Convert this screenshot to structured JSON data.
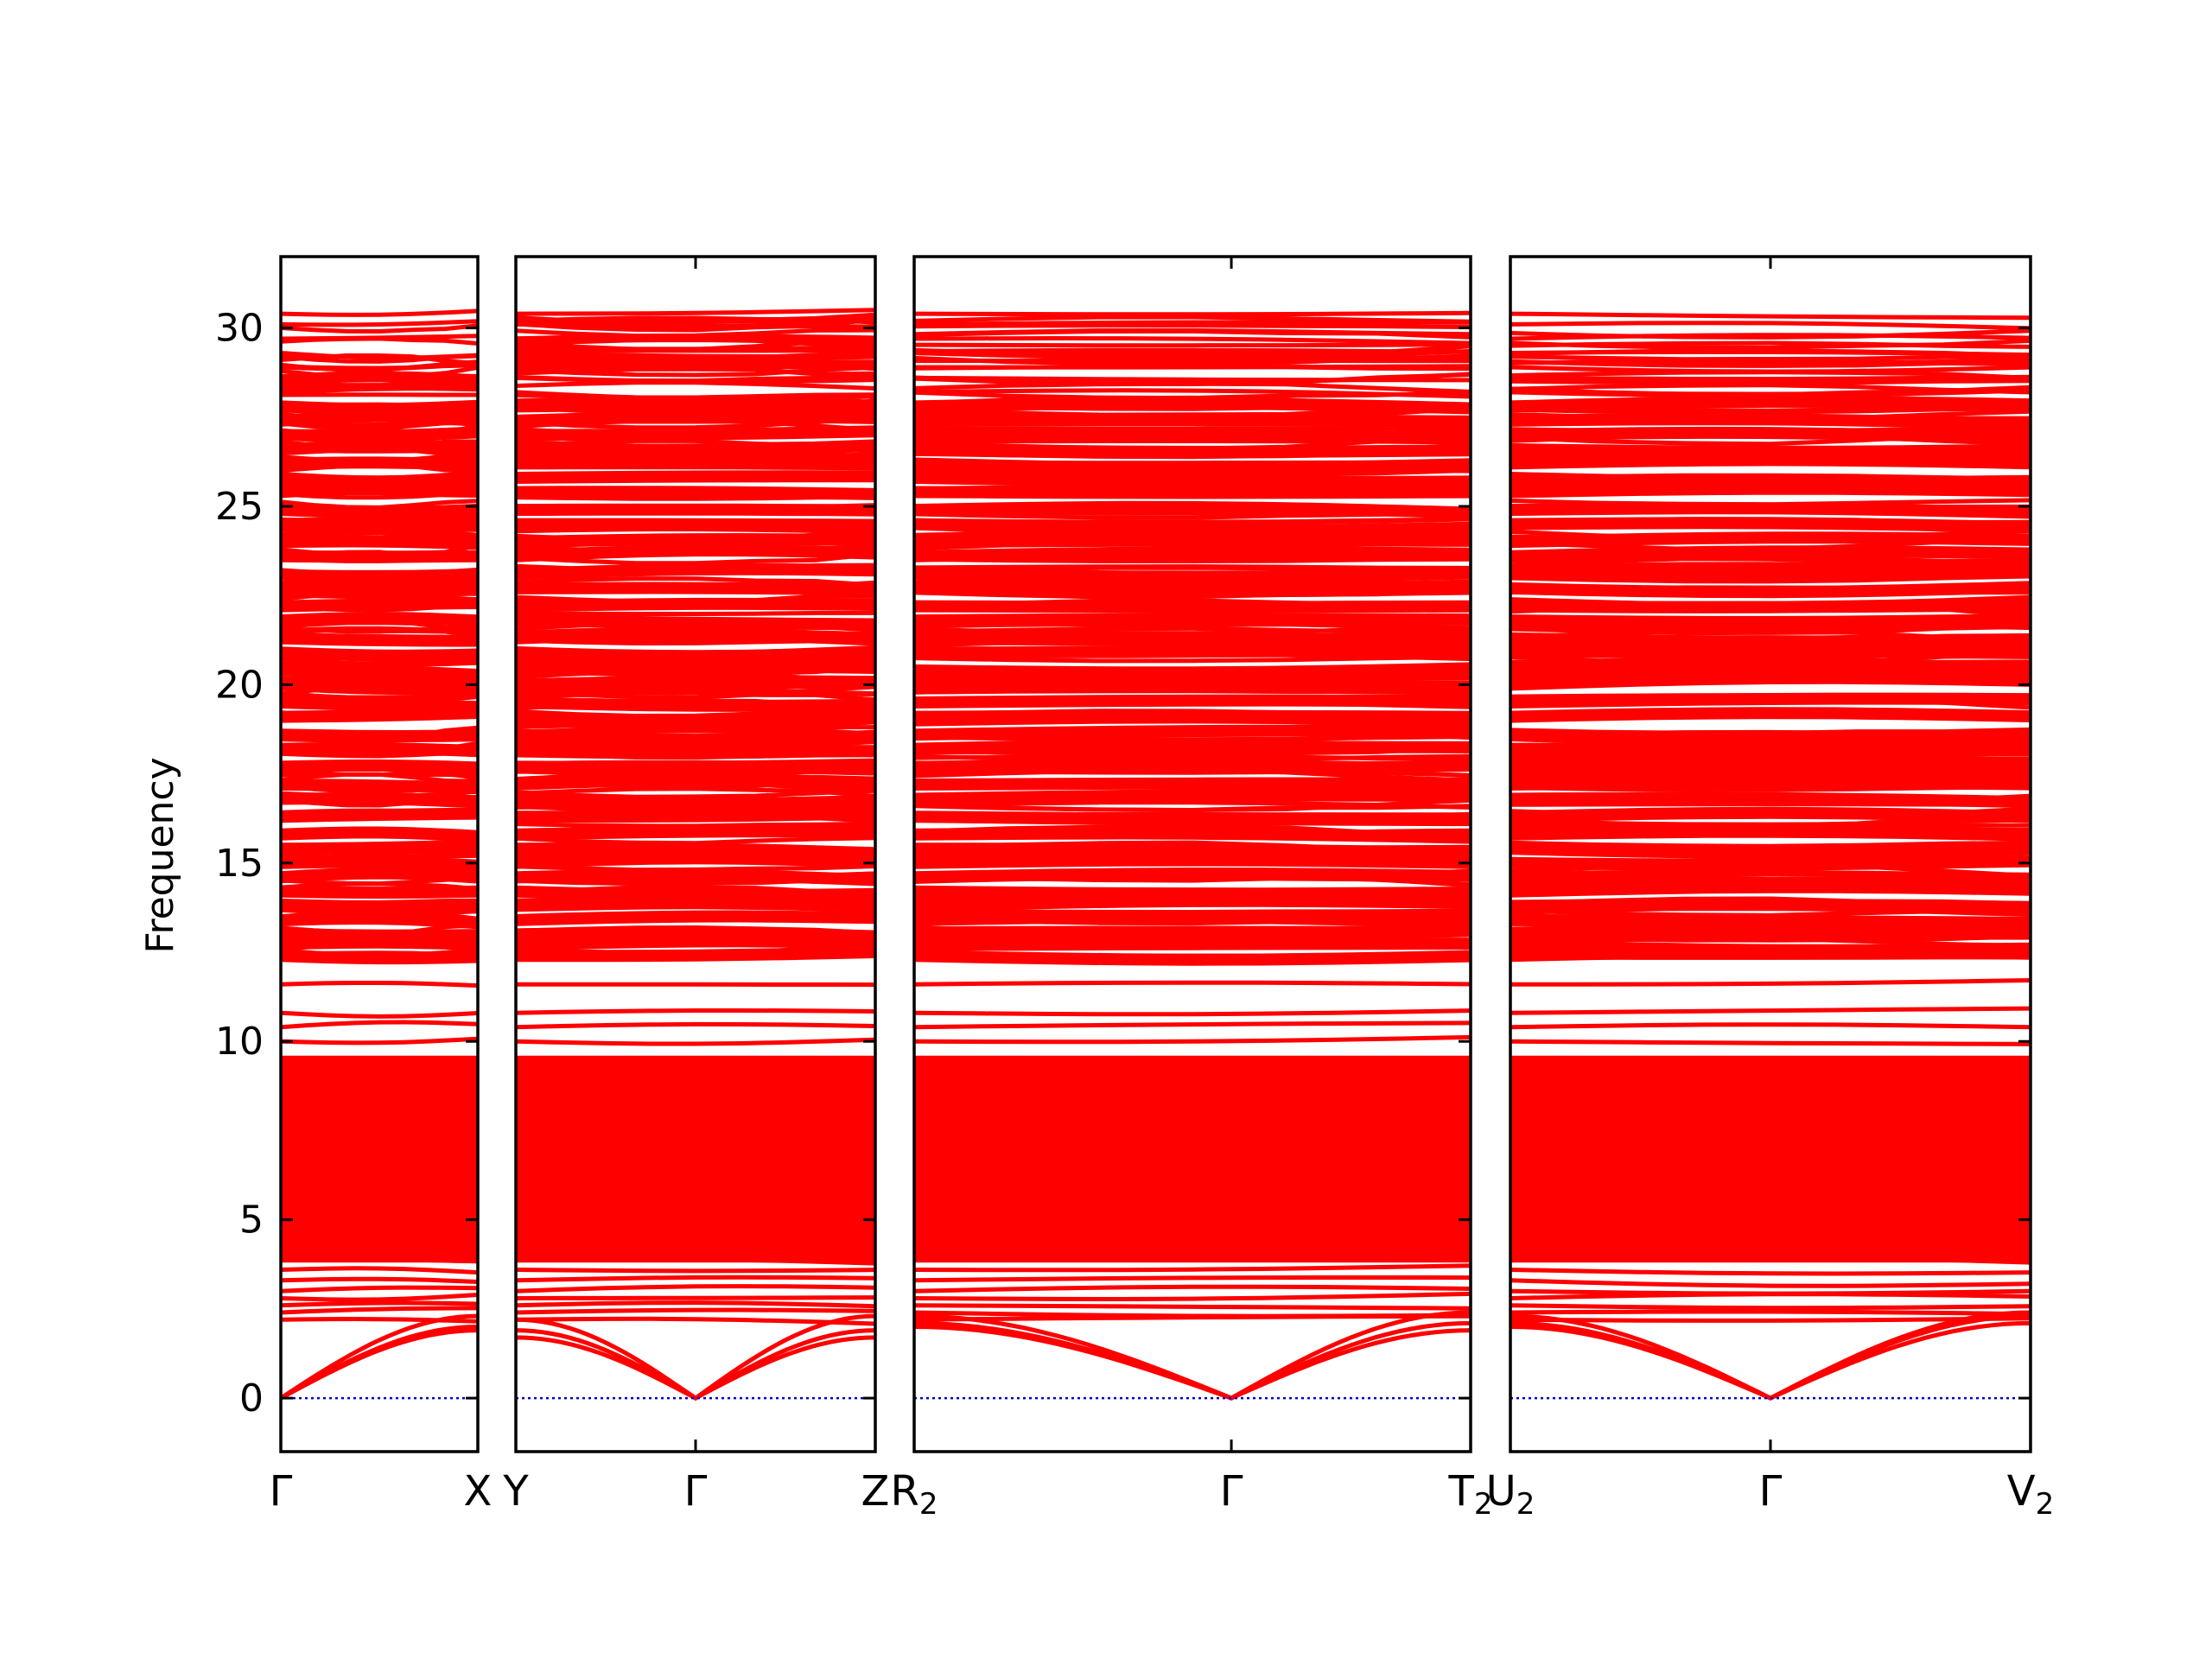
{
  "chart_data": {
    "type": "line",
    "title": "",
    "ylabel": "Frequency",
    "ylim": [
      -1.5,
      32
    ],
    "yticks": [
      0,
      5,
      10,
      15,
      20,
      25,
      30
    ],
    "ytick_labels": [
      "0",
      "5",
      "10",
      "15",
      "20",
      "25",
      "30"
    ],
    "line_color": "#ff0000",
    "zero_line_color": "#0000cc",
    "grid": false,
    "panels": [
      {
        "name": "panel-1",
        "kpoints": [
          {
            "label": "Γ",
            "sub": ""
          },
          {
            "label": "X",
            "sub": ""
          }
        ],
        "acoustic": [
          {
            "x": [
              0,
              1
            ],
            "y": [
              0,
              1.9
            ]
          },
          {
            "x": [
              0,
              1
            ],
            "y": [
              0,
              2.0
            ]
          },
          {
            "x": [
              0,
              1
            ],
            "y": [
              0,
              2.3
            ]
          }
        ]
      },
      {
        "name": "panel-2",
        "kpoints": [
          {
            "label": "Y",
            "sub": ""
          },
          {
            "label": "Γ",
            "sub": ""
          },
          {
            "label": "Z",
            "sub": ""
          }
        ],
        "acoustic": [
          {
            "x": [
              0,
              0.5,
              1
            ],
            "y": [
              1.9,
              0,
              1.7
            ]
          },
          {
            "x": [
              0,
              0.5,
              1
            ],
            "y": [
              1.7,
              0,
              1.9
            ]
          },
          {
            "x": [
              0,
              0.5,
              1
            ],
            "y": [
              2.2,
              0,
              2.3
            ]
          }
        ]
      },
      {
        "name": "panel-3",
        "kpoints": [
          {
            "label": "R",
            "sub": "2"
          },
          {
            "label": "Γ",
            "sub": ""
          },
          {
            "label": "T",
            "sub": "2"
          }
        ],
        "acoustic": [
          {
            "x": [
              0,
              0.57,
              1
            ],
            "y": [
              2.0,
              0,
              1.9
            ]
          },
          {
            "x": [
              0,
              0.57,
              1
            ],
            "y": [
              2.1,
              0,
              2.1
            ]
          },
          {
            "x": [
              0,
              0.57,
              1
            ],
            "y": [
              2.3,
              0,
              2.4
            ]
          }
        ]
      },
      {
        "name": "panel-4",
        "kpoints": [
          {
            "label": "U",
            "sub": "2"
          },
          {
            "label": "Γ",
            "sub": ""
          },
          {
            "label": "V",
            "sub": "2"
          }
        ],
        "acoustic": [
          {
            "x": [
              0,
              0.5,
              1
            ],
            "y": [
              2.0,
              0,
              2.1
            ]
          },
          {
            "x": [
              0,
              0.5,
              1
            ],
            "y": [
              2.1,
              0,
              2.3
            ]
          },
          {
            "x": [
              0,
              0.5,
              1
            ],
            "y": [
              2.3,
              0,
              2.4
            ]
          }
        ]
      }
    ],
    "optical_bands_description_levels": [
      2.2,
      2.4,
      2.6,
      2.8,
      3.0,
      3.3,
      3.6,
      3.9,
      10.0,
      10.4,
      10.8,
      11.6,
      12.4,
      12.7,
      13.0,
      13.4,
      13.8,
      14.2,
      14.6,
      15.0,
      15.4,
      15.8,
      16.3,
      16.8,
      17.2,
      17.7,
      18.2,
      18.6,
      19.1,
      19.5,
      20.0,
      20.4,
      20.9,
      21.3,
      21.8,
      22.2,
      22.7,
      23.1,
      23.6,
      24.0,
      24.5,
      24.9,
      25.4,
      25.8,
      26.2,
      26.6,
      27.0,
      27.4,
      27.8,
      28.2,
      28.6,
      28.9,
      29.3,
      29.7,
      30.1,
      30.4
    ],
    "dense_band_region": [
      3.8,
      9.6
    ]
  }
}
